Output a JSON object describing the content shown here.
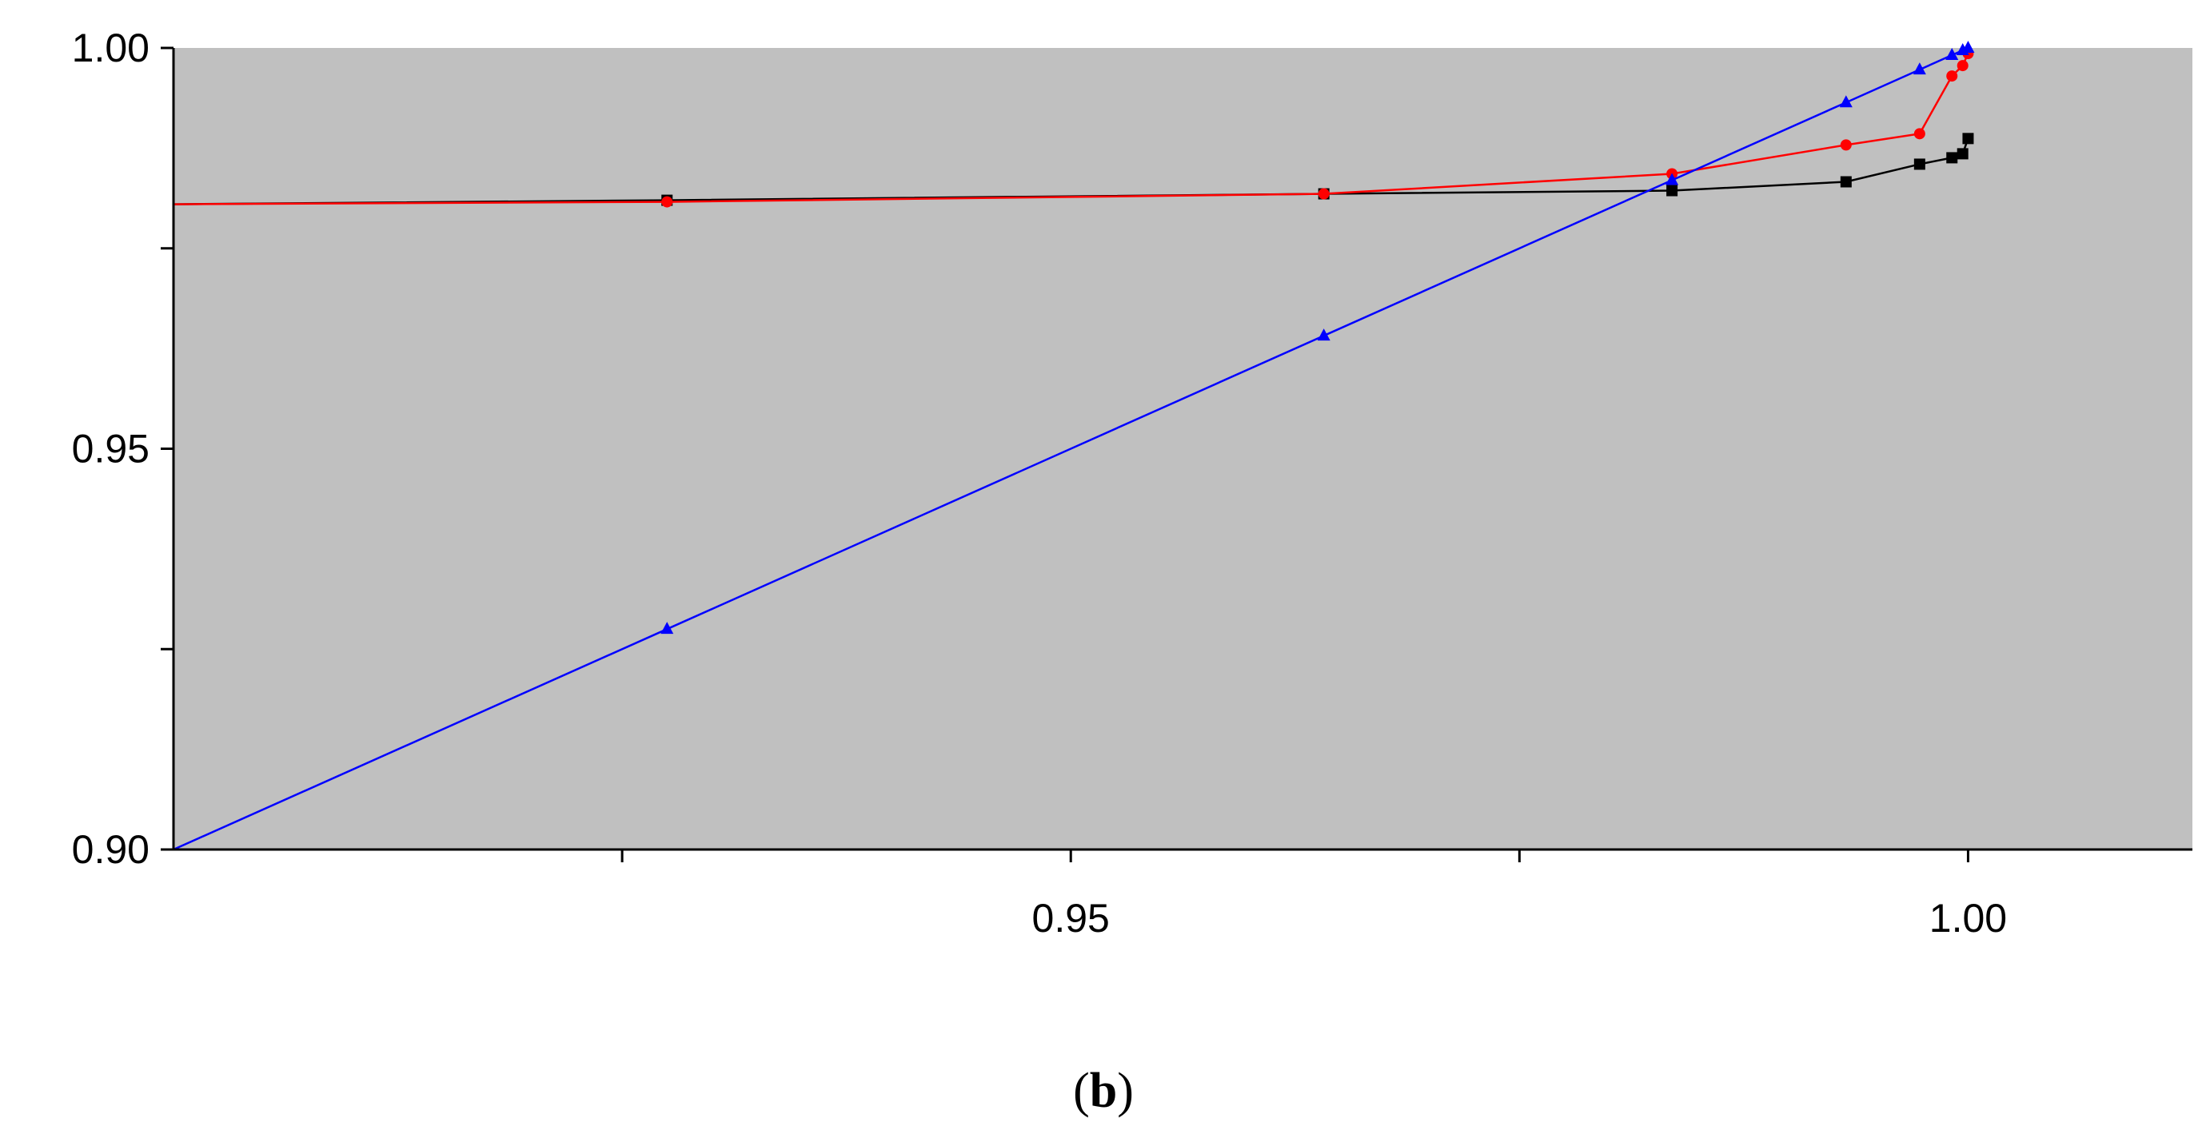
{
  "chart_data": {
    "type": "line",
    "title": "",
    "xlabel": "",
    "ylabel": "",
    "xlim": [
      0.9,
      1.0125
    ],
    "ylim": [
      0.9,
      1.0
    ],
    "x_ticks": [
      {
        "value": 0.925,
        "label": ""
      },
      {
        "value": 0.95,
        "label": "0.95"
      },
      {
        "value": 0.975,
        "label": ""
      },
      {
        "value": 1.0,
        "label": "1.00"
      }
    ],
    "y_ticks": [
      {
        "value": 0.9,
        "label": "0.90"
      },
      {
        "value": 0.925,
        "label": ""
      },
      {
        "value": 0.95,
        "label": "0.95"
      },
      {
        "value": 0.975,
        "label": ""
      },
      {
        "value": 1.0,
        "label": "1.00"
      }
    ],
    "plot_background": "#c0c0c0",
    "grid": false,
    "legend": "none",
    "series": [
      {
        "color": "#000000",
        "marker": "square",
        "x": [
          0.9,
          0.9275,
          0.9641,
          0.9835,
          0.9932,
          0.9973,
          0.9991,
          0.9997,
          1.0
        ],
        "y": [
          0.9805,
          0.981,
          0.9818,
          0.9822,
          0.9833,
          0.9855,
          0.9863,
          0.9868,
          0.9887
        ]
      },
      {
        "color": "#ff0000",
        "marker": "circle",
        "x": [
          0.9,
          0.9275,
          0.9641,
          0.9835,
          0.9932,
          0.9973,
          0.9991,
          0.9997,
          1.0
        ],
        "y": [
          0.9805,
          0.9808,
          0.9818,
          0.9843,
          0.9879,
          0.9893,
          0.9965,
          0.9978,
          0.9993
        ]
      },
      {
        "color": "#0000ff",
        "marker": "triangle",
        "x": [
          0.9,
          0.9275,
          0.9641,
          0.9835,
          0.9932,
          0.9973,
          0.9991,
          0.9997,
          1.0
        ],
        "y": [
          0.9,
          0.9275,
          0.9641,
          0.9835,
          0.9932,
          0.9973,
          0.9991,
          0.9997,
          1.0
        ]
      }
    ]
  },
  "caption": {
    "open": "(",
    "letter": "b",
    "close": ")"
  }
}
